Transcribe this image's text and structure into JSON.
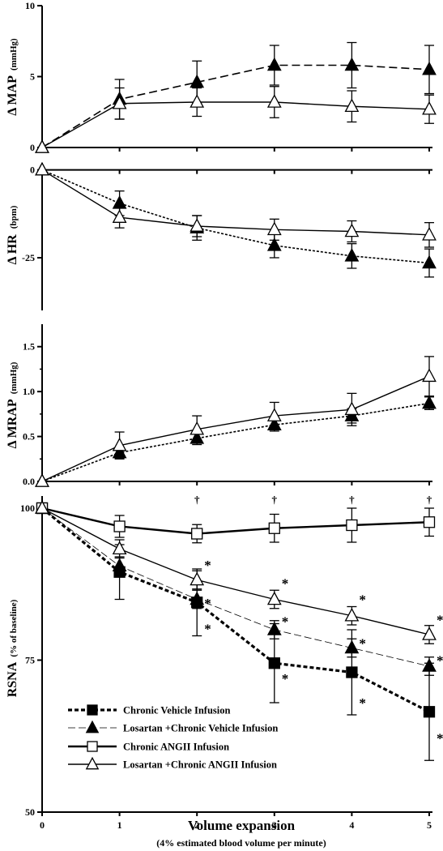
{
  "chart_data": [
    {
      "type": "line",
      "ylabel": "Δ MAP",
      "yunit": "(mmHg)",
      "ylim": [
        0,
        10
      ],
      "yticks": [
        0,
        5,
        10
      ],
      "ytick_labels": [
        "0",
        "5",
        "10"
      ],
      "x": [
        0,
        1,
        2,
        3,
        4,
        5
      ],
      "series": [
        {
          "key": "tri-filled",
          "style": "dash",
          "values": [
            0,
            3.4,
            4.6,
            5.8,
            5.8,
            5.5
          ],
          "errors": [
            0,
            1.4,
            1.5,
            1.4,
            1.6,
            1.7
          ]
        },
        {
          "key": "tri-open",
          "style": "solid",
          "values": [
            0,
            3.1,
            3.2,
            3.2,
            2.9,
            2.7
          ],
          "errors": [
            0,
            1.1,
            1.0,
            1.1,
            1.1,
            1.0
          ]
        }
      ]
    },
    {
      "type": "line",
      "ylabel": "Δ HR",
      "yunit": "(bpm)",
      "ylim": [
        -40,
        2
      ],
      "yticks": [
        0,
        -25
      ],
      "ytick_labels": [
        "0",
        "-25"
      ],
      "x": [
        0,
        1,
        2,
        3,
        4,
        5
      ],
      "series": [
        {
          "key": "tri-filled",
          "style": "dot",
          "values": [
            0,
            -9.5,
            -16.5,
            -21.5,
            -24.5,
            -26.5
          ],
          "errors": [
            0,
            3.5,
            3.5,
            3.5,
            3.5,
            4.0
          ]
        },
        {
          "key": "tri-open",
          "style": "solid",
          "values": [
            0,
            -13.5,
            -16.0,
            -17.0,
            -17.5,
            -18.5
          ],
          "errors": [
            0,
            3.0,
            3.0,
            3.0,
            3.0,
            3.5
          ]
        }
      ]
    },
    {
      "type": "line",
      "ylabel": "Δ MRAP",
      "yunit": "(mmHg)",
      "ylim": [
        0,
        1.75
      ],
      "yticks": [
        0,
        0.5,
        1.0,
        1.5
      ],
      "ytick_labels": [
        "0.0",
        "0.5",
        "1.0",
        "1.5"
      ],
      "x": [
        0,
        1,
        2,
        3,
        4,
        5
      ],
      "series": [
        {
          "key": "tri-filled",
          "style": "dot",
          "values": [
            0,
            0.32,
            0.48,
            0.63,
            0.73,
            0.87
          ],
          "errors": [
            0,
            0.06,
            0.07,
            0.07,
            0.08,
            0.07
          ]
        },
        {
          "key": "tri-open",
          "style": "solid",
          "values": [
            0,
            0.4,
            0.58,
            0.73,
            0.8,
            1.17
          ],
          "errors": [
            0,
            0.15,
            0.15,
            0.15,
            0.18,
            0.22
          ]
        }
      ]
    },
    {
      "type": "line",
      "ylabel": "RSNA",
      "yunit": "(% of baseline)",
      "ylim": [
        50,
        102
      ],
      "yticks": [
        50,
        75,
        100
      ],
      "ytick_labels": [
        "50",
        "75",
        "100"
      ],
      "x": [
        0,
        1,
        2,
        3,
        4,
        5
      ],
      "xticks": [
        "0",
        "1",
        "2",
        "3",
        "4",
        "5"
      ],
      "xlabel": "Volume expansion",
      "xlabel_sub": "(4% estimated blood volume per minute)",
      "series": [
        {
          "key": "sq-filled",
          "name": "Chronic Vehicle Infusion",
          "style": "thickdash",
          "values": [
            100,
            89.5,
            84.5,
            74.5,
            73.0,
            66.5
          ],
          "errors": [
            0,
            4.5,
            5.5,
            6.5,
            7.0,
            8.0
          ]
        },
        {
          "key": "tri-filled",
          "name": "Losartan +Chronic Vehicle Infusion",
          "style": "thindash",
          "values": [
            100,
            90.5,
            85.0,
            80.0,
            77.0,
            74.0
          ],
          "errors": [
            0,
            1.5,
            1.5,
            1.5,
            1.5,
            1.5
          ]
        },
        {
          "key": "sq-open",
          "name": "Chronic ANGII Infusion",
          "style": "thick",
          "values": [
            100,
            97.0,
            95.8,
            96.7,
            97.2,
            97.7
          ],
          "errors": [
            0,
            1.8,
            1.5,
            2.3,
            2.8,
            2.3
          ]
        },
        {
          "key": "tri-open",
          "name": "Losartan +Chronic ANGII Infusion",
          "style": "solid",
          "values": [
            100,
            93.3,
            88.2,
            85.0,
            82.3,
            79.2
          ],
          "errors": [
            0,
            1.5,
            1.5,
            1.5,
            1.5,
            1.5
          ]
        }
      ],
      "annotations": {
        "daggers": [
          {
            "x": 2,
            "label": "†"
          },
          {
            "x": 3,
            "label": "†"
          },
          {
            "x": 4,
            "label": "†"
          },
          {
            "x": 5,
            "label": "†"
          }
        ],
        "stars": [
          {
            "x": 2,
            "y": 91.5,
            "label": "*"
          },
          {
            "x": 2,
            "y": 85.2,
            "label": "*"
          },
          {
            "x": 2,
            "y": 81.0,
            "label": "*"
          },
          {
            "x": 3,
            "y": 88.5,
            "label": "*"
          },
          {
            "x": 3,
            "y": 82.2,
            "label": "*"
          },
          {
            "x": 3,
            "y": 72.8,
            "label": "*"
          },
          {
            "x": 4,
            "y": 85.8,
            "label": "*"
          },
          {
            "x": 4,
            "y": 78.6,
            "label": "*"
          },
          {
            "x": 4,
            "y": 68.8,
            "label": "*"
          },
          {
            "x": 5,
            "y": 82.5,
            "label": "*"
          },
          {
            "x": 5,
            "y": 75.8,
            "label": "*"
          },
          {
            "x": 5,
            "y": 63.0,
            "label": "*"
          }
        ]
      }
    }
  ]
}
